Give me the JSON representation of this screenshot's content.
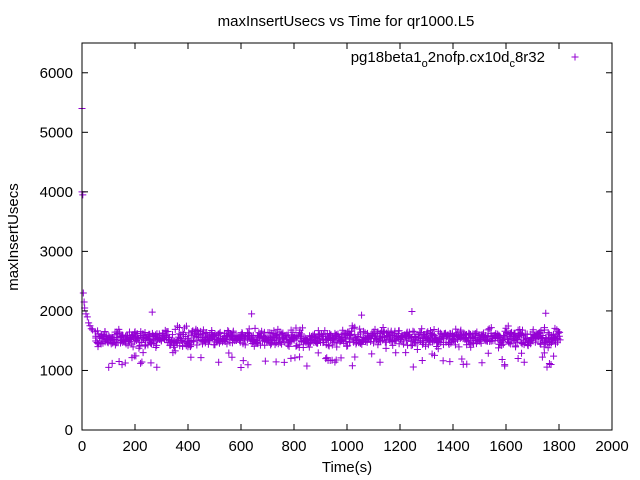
{
  "chart_data": {
    "type": "scatter",
    "title": "maxInsertUsecs vs Time for qr1000.L5",
    "xlabel": "Time(s)",
    "ylabel": "maxInsertUsecs",
    "xlim": [
      0,
      2000
    ],
    "ylim": [
      0,
      6500
    ],
    "xticks": [
      0,
      200,
      400,
      600,
      800,
      1000,
      1200,
      1400,
      1600,
      1800,
      2000
    ],
    "yticks": [
      0,
      1000,
      2000,
      3000,
      4000,
      5000,
      6000
    ],
    "grid": false,
    "legend_position": "top-right",
    "series": [
      {
        "name_main": "pg18beta1",
        "name_sub1": "o",
        "name_mid": "2nofp.cx10d",
        "name_sub2": "c",
        "name_end": "8r32",
        "color": "#9400d3",
        "marker": "plus",
        "x_start": 0,
        "x_end": 1800,
        "x_step": 5,
        "initial_points": [
          [
            0,
            5400
          ],
          [
            0,
            4000
          ],
          [
            3,
            3950
          ],
          [
            5,
            2300
          ],
          [
            8,
            2150
          ],
          [
            10,
            2050
          ],
          [
            15,
            1950
          ],
          [
            20,
            1900
          ],
          [
            25,
            1800
          ],
          [
            30,
            1750
          ],
          [
            35,
            1700
          ],
          [
            40,
            1680
          ],
          [
            50,
            1650
          ]
        ],
        "main_band": [
          1300,
          1800
        ],
        "main_center": 1550,
        "low_band": [
          1050,
          1300
        ],
        "outliers": [
          [
            265,
            1980
          ],
          [
            640,
            1950
          ],
          [
            1055,
            1930
          ],
          [
            1245,
            1990
          ],
          [
            1750,
            1960
          ],
          [
            140,
            1150
          ],
          [
            600,
            1050
          ],
          [
            1770,
            1100
          ]
        ]
      }
    ]
  }
}
